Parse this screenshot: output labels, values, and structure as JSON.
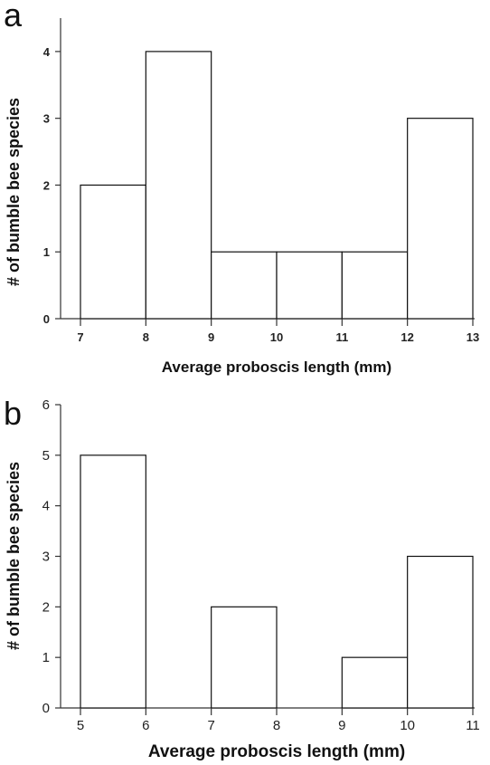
{
  "chart_data": [
    {
      "panel_label": "a",
      "type": "bar",
      "xlabel": "Average proboscis length (mm)",
      "ylabel": "# of bumble bee species",
      "xlim": [
        7,
        13
      ],
      "ylim": [
        0,
        4.5
      ],
      "x_ticks": [
        7,
        8,
        9,
        10,
        11,
        12,
        13
      ],
      "y_ticks": [
        0,
        1,
        2,
        3,
        4
      ],
      "bins": [
        {
          "from": 7,
          "to": 8,
          "value": 2
        },
        {
          "from": 8,
          "to": 9,
          "value": 4
        },
        {
          "from": 9,
          "to": 10,
          "value": 1
        },
        {
          "from": 10,
          "to": 11,
          "value": 1
        },
        {
          "from": 11,
          "to": 12,
          "value": 1
        },
        {
          "from": 12,
          "to": 13,
          "value": 3
        }
      ],
      "grid": false
    },
    {
      "panel_label": "b",
      "type": "bar",
      "xlabel": "Average proboscis length (mm)",
      "ylabel": "# of bumble bee species",
      "xlim": [
        5,
        11
      ],
      "ylim": [
        0,
        6
      ],
      "x_ticks": [
        5,
        6,
        7,
        8,
        9,
        10,
        11
      ],
      "y_ticks": [
        0,
        1,
        2,
        3,
        4,
        5,
        6
      ],
      "bins": [
        {
          "from": 5,
          "to": 6,
          "value": 5
        },
        {
          "from": 6,
          "to": 7,
          "value": 0
        },
        {
          "from": 7,
          "to": 8,
          "value": 2
        },
        {
          "from": 8,
          "to": 9,
          "value": 0
        },
        {
          "from": 9,
          "to": 10,
          "value": 1
        },
        {
          "from": 10,
          "to": 11,
          "value": 3
        }
      ],
      "grid": false
    }
  ]
}
